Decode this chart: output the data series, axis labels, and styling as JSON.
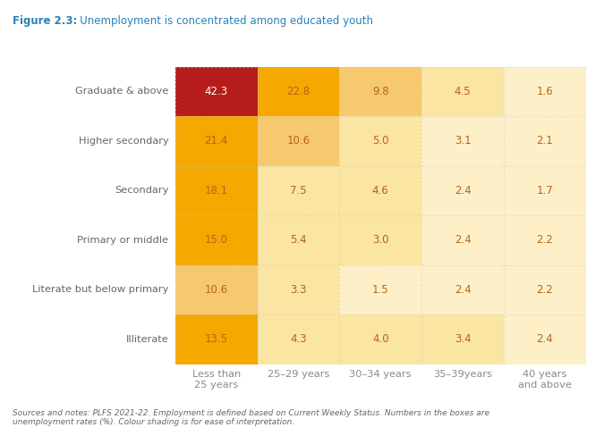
{
  "title_prefix": "Figure 2.3:",
  "title_main": "   Unemployment is concentrated among educated youth",
  "rows": [
    "Graduate & above",
    "Higher secondary",
    "Secondary",
    "Primary or middle",
    "Literate but below primary",
    "Illiterate"
  ],
  "cols": [
    "Less than\n25 years",
    "25–29 years",
    "30–34 years",
    "35–39years",
    "40 years\nand above"
  ],
  "values": [
    [
      42.3,
      22.8,
      9.8,
      4.5,
      1.6
    ],
    [
      21.4,
      10.6,
      5.0,
      3.1,
      2.1
    ],
    [
      18.1,
      7.5,
      4.6,
      2.4,
      1.7
    ],
    [
      15.0,
      5.4,
      3.0,
      2.4,
      2.2
    ],
    [
      10.6,
      3.3,
      1.5,
      2.4,
      2.2
    ],
    [
      13.5,
      4.3,
      4.0,
      3.4,
      2.4
    ]
  ],
  "cell_colors": [
    [
      "#b71c1c",
      "#f5a800",
      "#f7c96e",
      "#fbe5a2",
      "#fdf0c8"
    ],
    [
      "#f5a800",
      "#f7c96e",
      "#fbe5a2",
      "#fdf0c8",
      "#fdf0c8"
    ],
    [
      "#f5a800",
      "#fbe5a2",
      "#fbe5a2",
      "#fdf0c8",
      "#fdf0c8"
    ],
    [
      "#f5a800",
      "#fbe5a2",
      "#fbe5a2",
      "#fdf0c8",
      "#fdf0c8"
    ],
    [
      "#f7c96e",
      "#fbe5a2",
      "#fdf0c8",
      "#fdf0c8",
      "#fdf0c8"
    ],
    [
      "#f5a800",
      "#fbe5a2",
      "#fbe5a2",
      "#fbe5a2",
      "#fdf0c8"
    ]
  ],
  "text_colors": [
    [
      "#ffffff",
      "#b8621a",
      "#b8621a",
      "#b8621a",
      "#b8621a"
    ],
    [
      "#b8621a",
      "#b8621a",
      "#b8621a",
      "#b8621a",
      "#b8621a"
    ],
    [
      "#b8621a",
      "#b8621a",
      "#b8621a",
      "#b8621a",
      "#b8621a"
    ],
    [
      "#b8621a",
      "#b8621a",
      "#b8621a",
      "#b8621a",
      "#b8621a"
    ],
    [
      "#b8621a",
      "#b8621a",
      "#b8621a",
      "#b8621a",
      "#b8621a"
    ],
    [
      "#b8621a",
      "#b8621a",
      "#b8621a",
      "#b8621a",
      "#b8621a"
    ]
  ],
  "title_color": "#2980b9",
  "footnote": "Sources and notes: PLFS 2021-22. Employment is defined based on Current Weekly Status. Numbers in the boxes are\nunemployment rates (%). Colour shading is for ease of interpretation.",
  "background_color": "#ffffff",
  "grid_color": "#c8c8c8",
  "row_label_color": "#666666",
  "col_label_color": "#8a8a8a"
}
